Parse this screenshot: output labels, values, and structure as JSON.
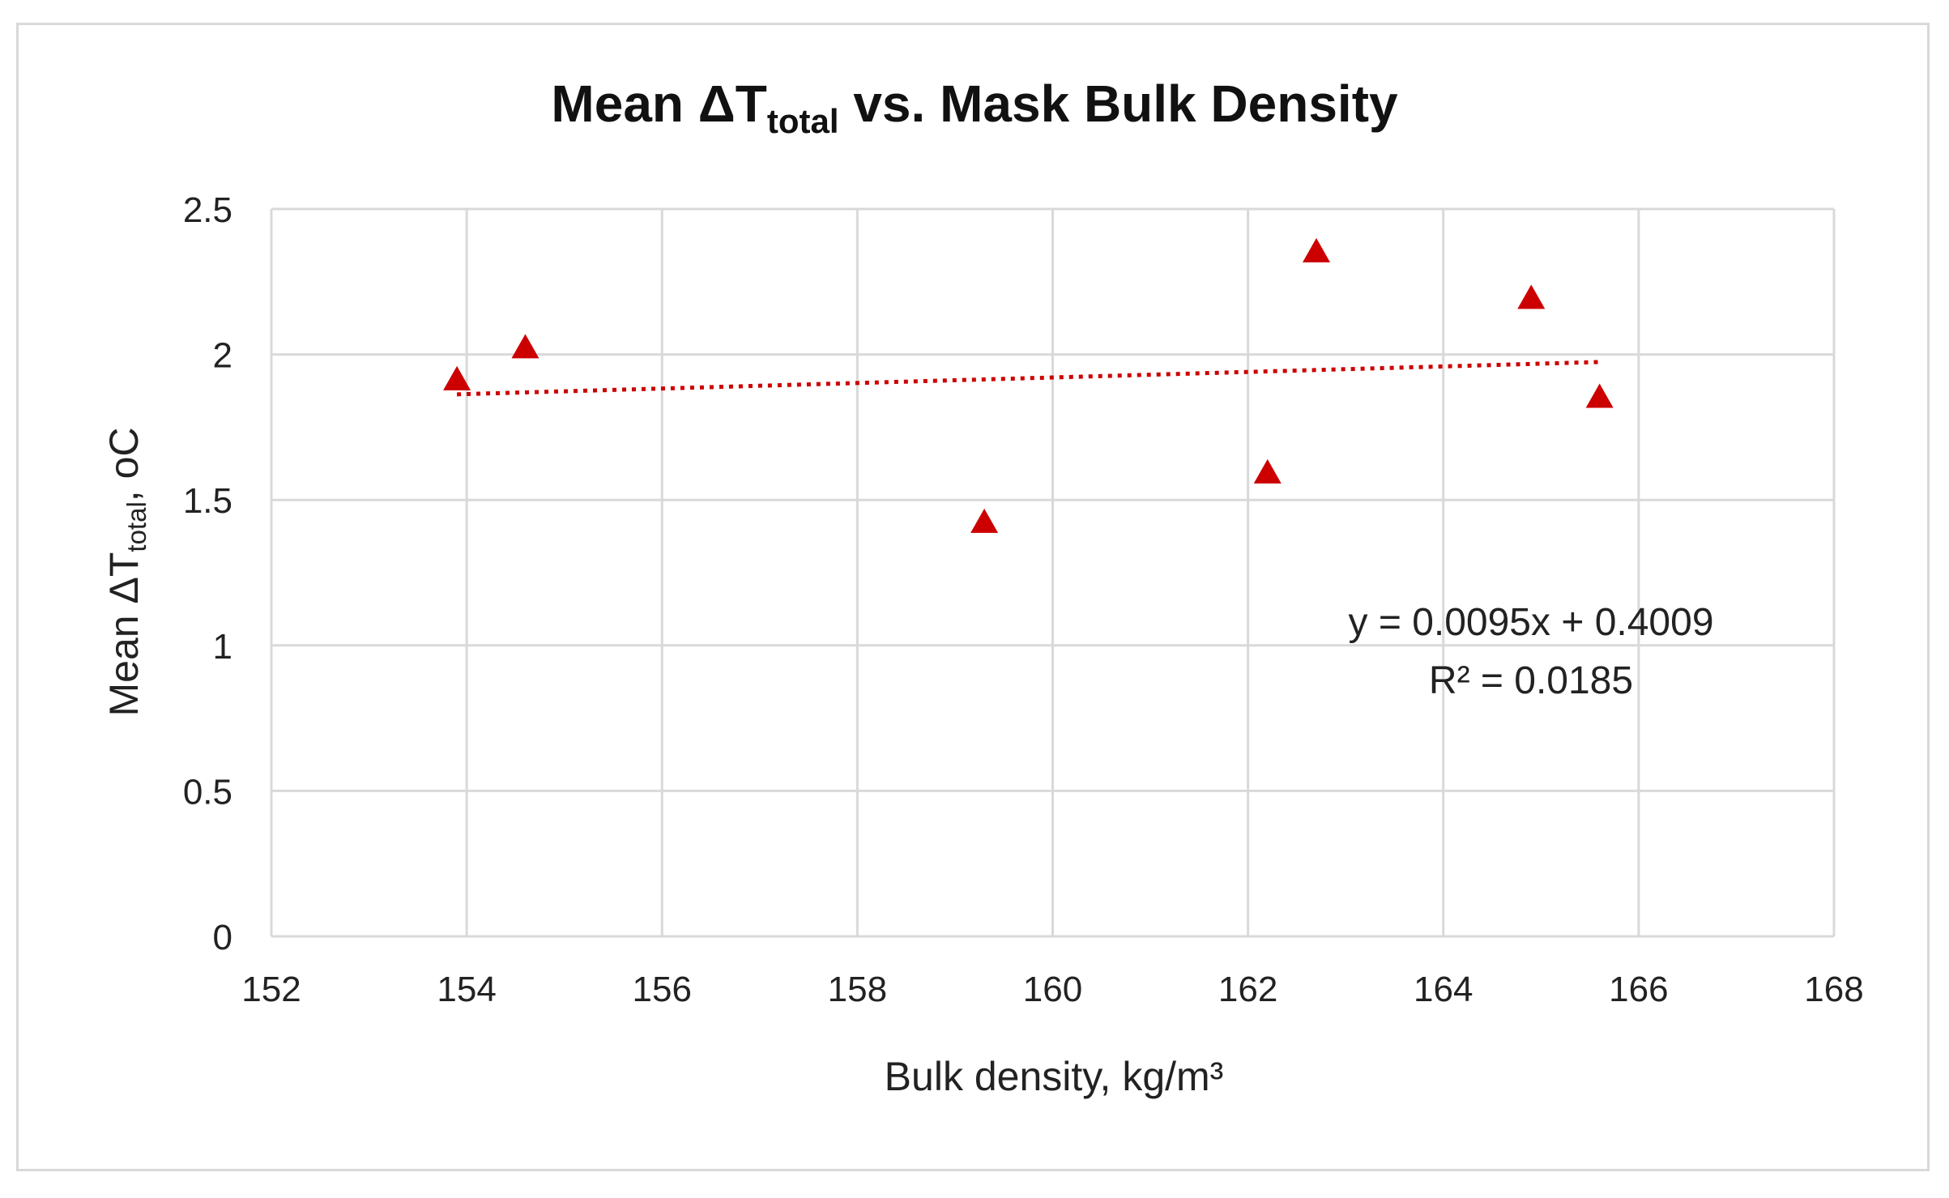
{
  "chart_data": {
    "type": "scatter",
    "title": {
      "prefix": "Mean ΔT",
      "subscript": "total",
      "suffix": " vs. Mask Bulk Density"
    },
    "xlabel": "Bulk density, kg/m³",
    "ylabel": {
      "prefix": "Mean ΔT",
      "subscript": "total",
      "suffix": ", oC"
    },
    "xlim": [
      152,
      168
    ],
    "ylim": [
      0,
      2.5
    ],
    "x_ticks": [
      "152",
      "154",
      "156",
      "158",
      "160",
      "162",
      "164",
      "166",
      "168"
    ],
    "y_ticks": [
      "0",
      "0.5",
      "1",
      "1.5",
      "2",
      "2.5"
    ],
    "grid": true,
    "marker": "triangle",
    "marker_color": "#cc0000",
    "points": [
      {
        "x": 153.9,
        "y": 1.91
      },
      {
        "x": 154.6,
        "y": 2.02
      },
      {
        "x": 159.3,
        "y": 1.42
      },
      {
        "x": 162.2,
        "y": 1.59
      },
      {
        "x": 162.7,
        "y": 2.35
      },
      {
        "x": 164.9,
        "y": 2.19
      },
      {
        "x": 165.6,
        "y": 1.85
      }
    ],
    "trendline": {
      "slope": 0.0095,
      "intercept": 0.4009,
      "x_range": [
        153.9,
        165.6
      ],
      "style": "dotted",
      "color": "#cc0000",
      "equation": "y = 0.0095x + 0.4009",
      "r_squared": "R² = 0.0185"
    }
  }
}
